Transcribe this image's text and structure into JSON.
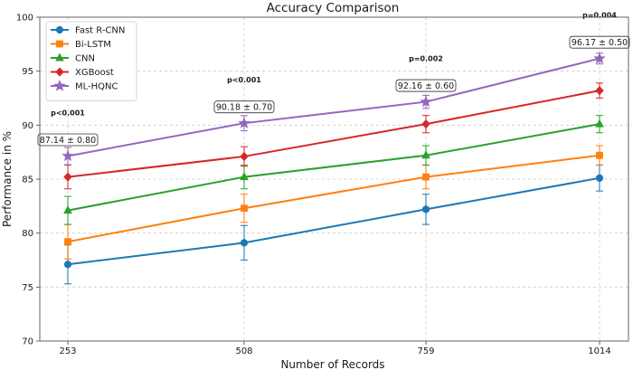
{
  "chart_data": {
    "type": "line",
    "title": "Accuracy Comparison",
    "xlabel": "Number of Records",
    "ylabel": "Performance in %",
    "categories": [
      "253",
      "508",
      "759",
      "1014"
    ],
    "ylim": [
      70,
      100
    ],
    "yticks": [
      70,
      75,
      80,
      85,
      90,
      95,
      100
    ],
    "grid": true,
    "legend_position": "top-left",
    "series": [
      {
        "name": "Fast R-CNN",
        "color": "#1f77b4",
        "marker": "circle",
        "values": [
          77.1,
          79.1,
          82.2,
          85.1
        ],
        "errors": [
          1.8,
          1.6,
          1.4,
          1.2
        ]
      },
      {
        "name": "Bi-LSTM",
        "color": "#ff7f0e",
        "marker": "square",
        "values": [
          79.2,
          82.3,
          85.2,
          87.2
        ],
        "errors": [
          1.6,
          1.3,
          1.1,
          0.9
        ]
      },
      {
        "name": "CNN",
        "color": "#2ca02c",
        "marker": "triangle",
        "values": [
          82.1,
          85.2,
          87.2,
          90.1
        ],
        "errors": [
          1.3,
          1.1,
          0.9,
          0.8
        ]
      },
      {
        "name": "XGBoost",
        "color": "#d62728",
        "marker": "diamond",
        "values": [
          85.2,
          87.1,
          90.1,
          93.2
        ],
        "errors": [
          1.1,
          0.9,
          0.8,
          0.7
        ]
      },
      {
        "name": "ML-HQNC",
        "color": "#9467bd",
        "marker": "star",
        "values": [
          87.14,
          90.18,
          92.16,
          96.17
        ],
        "errors": [
          0.8,
          0.7,
          0.6,
          0.5
        ]
      }
    ],
    "annotations": [
      {
        "label": "87.14 ± 0.80",
        "pvalue": "p<0.001"
      },
      {
        "label": "90.18 ± 0.70",
        "pvalue": "p<0.001"
      },
      {
        "label": "92.16 ± 0.60",
        "pvalue": "p=0.002"
      },
      {
        "label": "96.17 ± 0.50",
        "pvalue": "p=0.004"
      }
    ]
  }
}
